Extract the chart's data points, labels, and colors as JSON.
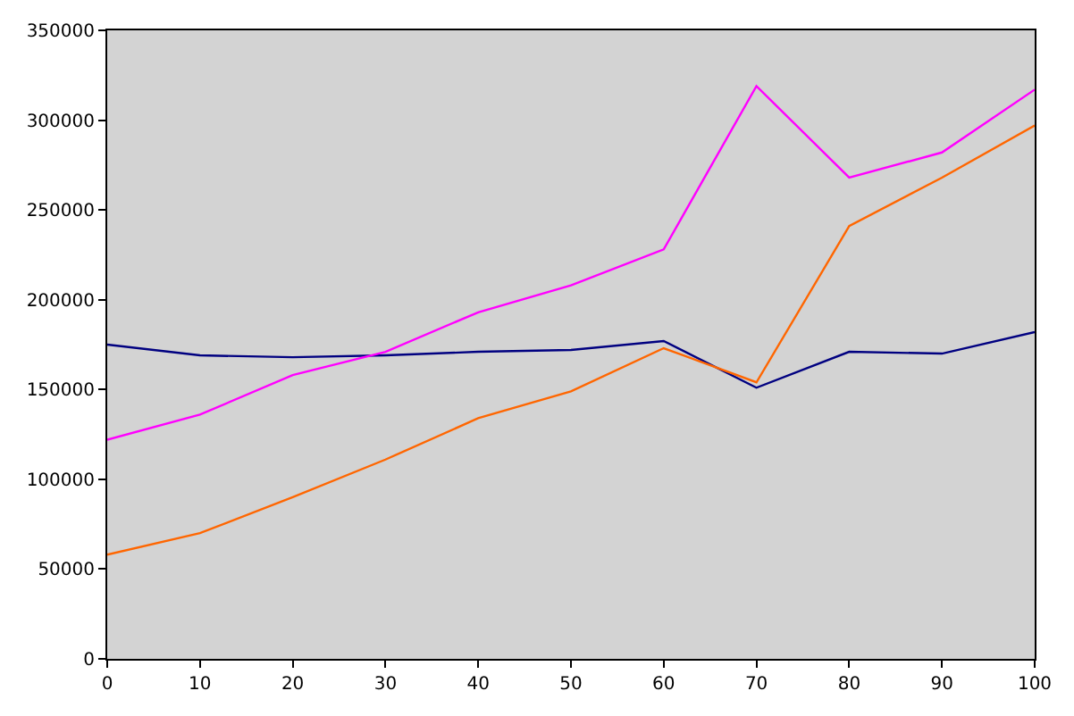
{
  "chart_data": {
    "type": "line",
    "x": [
      0,
      10,
      20,
      30,
      40,
      50,
      60,
      70,
      80,
      90,
      100
    ],
    "series": [
      {
        "color": "#000080",
        "values": [
          175000,
          169000,
          168000,
          169000,
          171000,
          172000,
          177000,
          151000,
          171000,
          170000,
          182000
        ]
      },
      {
        "color": "#ff6600",
        "values": [
          58000,
          70000,
          90000,
          111000,
          134000,
          149000,
          173000,
          154000,
          241000,
          268000,
          297000
        ]
      },
      {
        "color": "#ff00ff",
        "values": [
          122000,
          136000,
          158000,
          171000,
          193000,
          208000,
          228000,
          319000,
          268000,
          282000,
          317000
        ]
      }
    ],
    "xlim": [
      0,
      100
    ],
    "xticks": [
      0,
      10,
      20,
      30,
      40,
      50,
      60,
      70,
      80,
      90,
      100
    ],
    "ylim": [
      0,
      350000
    ],
    "yticks": [
      0,
      50000,
      100000,
      150000,
      200000,
      250000,
      300000,
      350000
    ],
    "grid": false,
    "marker": "none",
    "line_style": "solid"
  }
}
